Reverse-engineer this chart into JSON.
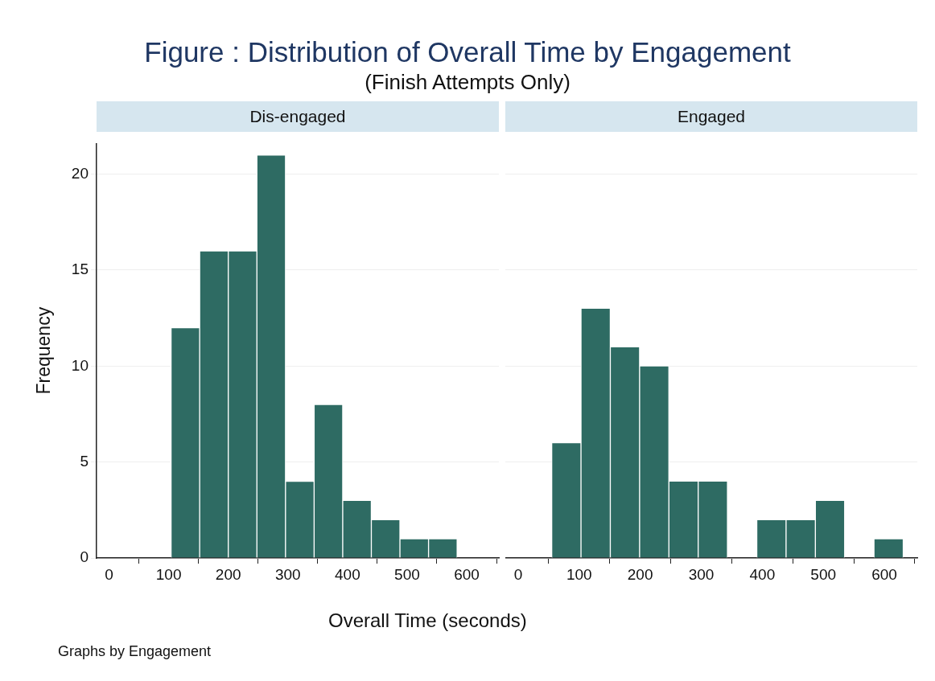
{
  "chart_data": [
    {
      "type": "histogram",
      "title": "Dis-engaged",
      "ylabel": "Frequency",
      "xlabel": "Overall Time (seconds)",
      "annotations": [
        "Figure : Distribution of Overall Time by Engagement",
        "(Finish Attempts Only)",
        "Graphs by Engagement"
      ],
      "bins": [
        104,
        152,
        200,
        248,
        296,
        344,
        392,
        440,
        488,
        536,
        584
      ],
      "values": [
        12,
        16,
        16,
        21,
        4,
        8,
        3,
        2,
        1,
        1
      ],
      "color": "#2e6b63",
      "xlim": [
        -21,
        654
      ],
      "xticks": [
        0,
        100,
        200,
        300,
        400,
        500,
        600
      ],
      "ylim": [
        0,
        21.6
      ],
      "yticks": [
        0,
        5,
        10,
        15,
        20
      ],
      "grid": "y"
    },
    {
      "type": "histogram",
      "title": "Engaged",
      "bins": [
        55,
        103,
        151,
        199,
        247,
        295,
        343,
        391,
        439,
        487,
        535,
        583,
        631
      ],
      "values": [
        6,
        13,
        11,
        10,
        4,
        4,
        0,
        2,
        2,
        3,
        0,
        1
      ],
      "color": "#2e6b63",
      "xlim": [
        -21,
        654
      ],
      "xticks": [
        0,
        100,
        200,
        300,
        400,
        500,
        600
      ],
      "yticks": [
        0,
        5,
        10,
        15,
        20
      ],
      "grid": "y",
      "tick_labels": "x"
    }
  ]
}
